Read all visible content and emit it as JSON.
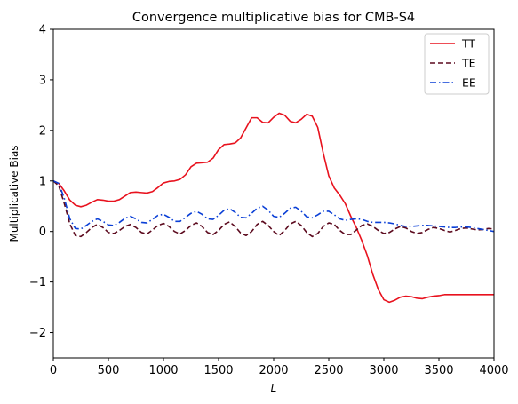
{
  "chart_data": {
    "type": "line",
    "title": "Convergence multiplicative bias for CMB-S4",
    "xlabel": "L",
    "ylabel": "Multiplicative Bias",
    "xlim": [
      0,
      4000
    ],
    "ylim": [
      -2.5,
      4
    ],
    "xticks": [
      0,
      500,
      1000,
      1500,
      2000,
      2500,
      3000,
      3500,
      4000
    ],
    "yticks": [
      -2,
      -1,
      0,
      1,
      2,
      3,
      4
    ],
    "grid": false,
    "legend_position": "top-right",
    "series": [
      {
        "name": "TT",
        "color": "#e8121e",
        "linestyle": "solid",
        "x": [
          0,
          50,
          100,
          150,
          200,
          250,
          300,
          350,
          400,
          450,
          500,
          550,
          600,
          650,
          700,
          750,
          800,
          850,
          900,
          950,
          1000,
          1050,
          1100,
          1150,
          1200,
          1250,
          1300,
          1350,
          1400,
          1450,
          1500,
          1550,
          1600,
          1650,
          1700,
          1750,
          1800,
          1850,
          1900,
          1950,
          2000,
          2050,
          2100,
          2150,
          2200,
          2250,
          2300,
          2350,
          2400,
          2450,
          2500,
          2550,
          2600,
          2650,
          2700,
          2750,
          2800,
          2850,
          2900,
          2950,
          3000,
          3050,
          3100,
          3150,
          3200,
          3250,
          3300,
          3350,
          3400,
          3450,
          3500,
          3550,
          3600,
          3650,
          3700,
          3750,
          3800,
          3850,
          3900,
          3950,
          4000
        ],
        "y": [
          1.0,
          0.95,
          0.8,
          0.62,
          0.52,
          0.49,
          0.52,
          0.58,
          0.63,
          0.62,
          0.6,
          0.6,
          0.63,
          0.7,
          0.77,
          0.78,
          0.77,
          0.76,
          0.79,
          0.87,
          0.96,
          0.99,
          1.0,
          1.03,
          1.12,
          1.28,
          1.35,
          1.36,
          1.37,
          1.45,
          1.62,
          1.72,
          1.73,
          1.75,
          1.85,
          2.05,
          2.25,
          2.25,
          2.16,
          2.15,
          2.26,
          2.34,
          2.3,
          2.18,
          2.15,
          2.22,
          2.32,
          2.28,
          2.06,
          1.55,
          1.1,
          0.86,
          0.72,
          0.55,
          0.3,
          0.08,
          -0.18,
          -0.48,
          -0.85,
          -1.15,
          -1.35,
          -1.4,
          -1.36,
          -1.3,
          -1.28,
          -1.29,
          -1.32,
          -1.33,
          -1.3,
          -1.28,
          -1.27,
          -1.25,
          -1.25,
          -1.25,
          -1.25,
          -1.25,
          -1.25,
          -1.25,
          -1.25,
          -1.25,
          -1.25
        ]
      },
      {
        "name": "TE",
        "color": "#5c0a1e",
        "linestyle": "dashed",
        "x": [
          0,
          50,
          100,
          150,
          200,
          250,
          300,
          350,
          400,
          450,
          500,
          550,
          600,
          650,
          700,
          750,
          800,
          850,
          900,
          950,
          1000,
          1050,
          1100,
          1150,
          1200,
          1250,
          1300,
          1350,
          1400,
          1450,
          1500,
          1550,
          1600,
          1650,
          1700,
          1750,
          1800,
          1850,
          1900,
          1950,
          2000,
          2050,
          2100,
          2150,
          2200,
          2250,
          2300,
          2350,
          2400,
          2450,
          2500,
          2550,
          2600,
          2650,
          2700,
          2750,
          2800,
          2850,
          2900,
          2950,
          3000,
          3050,
          3100,
          3150,
          3200,
          3250,
          3300,
          3350,
          3400,
          3450,
          3500,
          3550,
          3600,
          3650,
          3700,
          3750,
          3800,
          3850,
          3900,
          3950,
          4000
        ],
        "y": [
          1.0,
          0.9,
          0.55,
          0.15,
          -0.08,
          -0.1,
          -0.02,
          0.08,
          0.14,
          0.08,
          -0.02,
          -0.04,
          0.02,
          0.1,
          0.14,
          0.08,
          -0.02,
          -0.05,
          0.03,
          0.12,
          0.16,
          0.1,
          0.0,
          -0.05,
          0.02,
          0.12,
          0.17,
          0.1,
          -0.02,
          -0.06,
          0.02,
          0.14,
          0.19,
          0.1,
          -0.03,
          -0.08,
          0.0,
          0.14,
          0.2,
          0.12,
          0.0,
          -0.08,
          0.02,
          0.15,
          0.2,
          0.12,
          -0.02,
          -0.1,
          -0.04,
          0.1,
          0.17,
          0.14,
          0.02,
          -0.06,
          -0.06,
          0.03,
          0.12,
          0.15,
          0.1,
          0.02,
          -0.04,
          -0.02,
          0.05,
          0.1,
          0.07,
          0.0,
          -0.04,
          -0.02,
          0.04,
          0.08,
          0.06,
          0.02,
          -0.01,
          0.02,
          0.06,
          0.07,
          0.05,
          0.03,
          0.04,
          0.06,
          0.05
        ]
      },
      {
        "name": "EE",
        "color": "#0a3fd6",
        "linestyle": "dashdot",
        "x": [
          0,
          50,
          100,
          150,
          200,
          250,
          300,
          350,
          400,
          450,
          500,
          550,
          600,
          650,
          700,
          750,
          800,
          850,
          900,
          950,
          1000,
          1050,
          1100,
          1150,
          1200,
          1250,
          1300,
          1350,
          1400,
          1450,
          1500,
          1550,
          1600,
          1650,
          1700,
          1750,
          1800,
          1850,
          1900,
          1950,
          2000,
          2050,
          2100,
          2150,
          2200,
          2250,
          2300,
          2350,
          2400,
          2450,
          2500,
          2550,
          2600,
          2650,
          2700,
          2750,
          2800,
          2850,
          2900,
          2950,
          3000,
          3050,
          3100,
          3150,
          3200,
          3250,
          3300,
          3350,
          3400,
          3450,
          3500,
          3550,
          3600,
          3650,
          3700,
          3750,
          3800,
          3850,
          3900,
          3950,
          4000
        ],
        "y": [
          1.0,
          0.95,
          0.65,
          0.25,
          0.06,
          0.05,
          0.12,
          0.2,
          0.25,
          0.2,
          0.13,
          0.12,
          0.18,
          0.26,
          0.3,
          0.25,
          0.18,
          0.17,
          0.24,
          0.32,
          0.34,
          0.28,
          0.2,
          0.2,
          0.28,
          0.36,
          0.4,
          0.34,
          0.25,
          0.24,
          0.32,
          0.42,
          0.45,
          0.38,
          0.28,
          0.27,
          0.36,
          0.46,
          0.5,
          0.42,
          0.3,
          0.28,
          0.36,
          0.46,
          0.48,
          0.4,
          0.29,
          0.27,
          0.33,
          0.4,
          0.4,
          0.33,
          0.25,
          0.22,
          0.24,
          0.25,
          0.24,
          0.2,
          0.18,
          0.18,
          0.18,
          0.17,
          0.15,
          0.12,
          0.1,
          0.1,
          0.11,
          0.12,
          0.12,
          0.11,
          0.1,
          0.09,
          0.08,
          0.08,
          0.09,
          0.09,
          0.08,
          0.06,
          0.04,
          0.02,
          0.0
        ]
      }
    ]
  }
}
